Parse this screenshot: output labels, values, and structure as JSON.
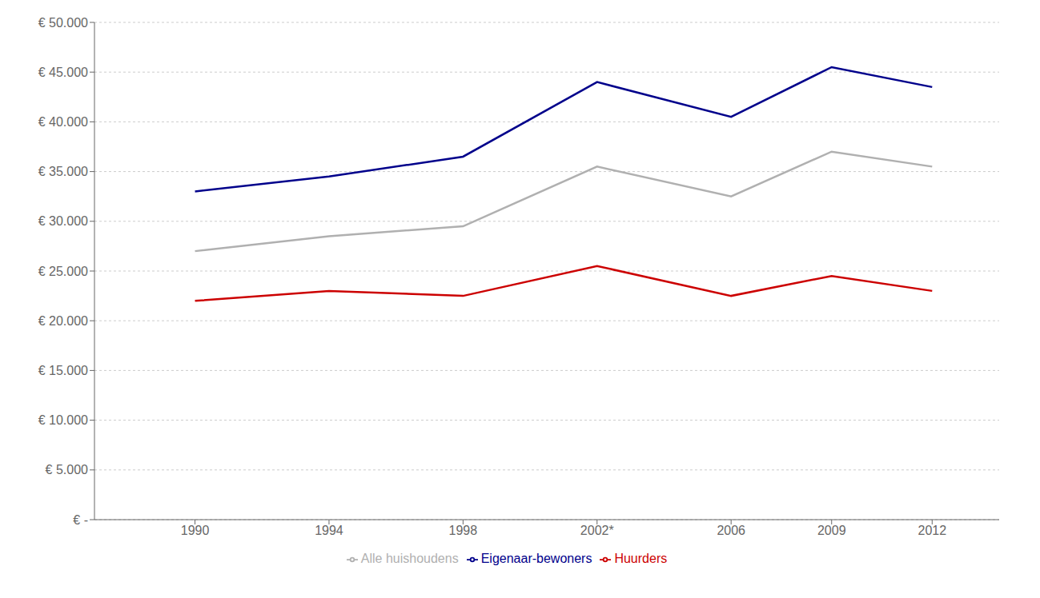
{
  "chart_data": {
    "type": "line",
    "x": [
      1990,
      1994,
      1998,
      2002,
      2006,
      2009,
      2012
    ],
    "xlim": [
      1987,
      2014
    ],
    "xticks": [
      1990,
      1994,
      1998,
      {
        "value": 2002,
        "label": "2002*"
      },
      2006,
      2009,
      2012
    ],
    "ylim": [
      0,
      50000
    ],
    "yticks": [
      {
        "value": 0,
        "label": "€ -"
      },
      {
        "value": 5000,
        "label": "€ 5.000"
      },
      {
        "value": 10000,
        "label": "€ 10.000"
      },
      {
        "value": 15000,
        "label": "€ 15.000"
      },
      {
        "value": 20000,
        "label": "€ 20.000"
      },
      {
        "value": 25000,
        "label": "€ 25.000"
      },
      {
        "value": 30000,
        "label": "€ 30.000"
      },
      {
        "value": 35000,
        "label": "€ 35.000"
      },
      {
        "value": 40000,
        "label": "€ 40.000"
      },
      {
        "value": 45000,
        "label": "€ 45.000"
      },
      {
        "value": 50000,
        "label": "€ 50.000"
      }
    ],
    "series": [
      {
        "name": "Eigenaar-bewoners",
        "color": "#00008B",
        "values": [
          33000,
          34500,
          36500,
          44000,
          40500,
          45500,
          43500
        ]
      },
      {
        "name": "Huurders",
        "color": "#CC0000",
        "values": [
          22000,
          23000,
          22500,
          25500,
          22500,
          24500,
          23000
        ]
      },
      {
        "name": "Alle huishoudens",
        "color": "#B0B0B0",
        "values": [
          27000,
          28500,
          29500,
          35500,
          32500,
          37000,
          35500
        ]
      }
    ],
    "grid": true,
    "legend": "bottom"
  }
}
